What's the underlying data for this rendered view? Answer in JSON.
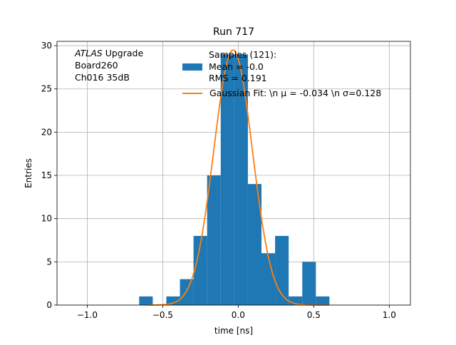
{
  "chart_data": {
    "type": "bar",
    "title": "Run 717",
    "xlabel": "time [ns]",
    "ylabel": "Entries",
    "xlim": [
      -1.2,
      1.14
    ],
    "ylim": [
      0,
      30.5
    ],
    "x_ticks": [
      -1.0,
      -0.5,
      0.0,
      0.5,
      1.0
    ],
    "x_tick_labels": [
      "−1.0",
      "−0.5",
      "0.0",
      "0.5",
      "1.0"
    ],
    "y_ticks": [
      0,
      5,
      10,
      15,
      20,
      25,
      30
    ],
    "y_tick_labels": [
      "0",
      "5",
      "10",
      "15",
      "20",
      "25",
      "30"
    ],
    "grid": true,
    "legend_position": "top-right",
    "annotation": {
      "italic": "ATLAS",
      "line1_rest": " Upgrade",
      "line2": " Board260",
      "line3": " Ch016 35dB"
    },
    "histogram": {
      "name_line1": "Samples (121):",
      "name_line2": " Mean = -0.0",
      "name_line3": " RMS = 0.191",
      "color": "#1f77b4",
      "bins": [
        {
          "x0": -0.656,
          "x1": -0.566,
          "count": 1
        },
        {
          "x0": -0.566,
          "x1": -0.476,
          "count": 0
        },
        {
          "x0": -0.476,
          "x1": -0.386,
          "count": 1
        },
        {
          "x0": -0.386,
          "x1": -0.296,
          "count": 3
        },
        {
          "x0": -0.296,
          "x1": -0.206,
          "count": 8
        },
        {
          "x0": -0.206,
          "x1": -0.116,
          "count": 15
        },
        {
          "x0": -0.116,
          "x1": -0.026,
          "count": 29
        },
        {
          "x0": -0.026,
          "x1": 0.064,
          "count": 29
        },
        {
          "x0": 0.064,
          "x1": 0.154,
          "count": 14
        },
        {
          "x0": 0.154,
          "x1": 0.244,
          "count": 6
        },
        {
          "x0": 0.244,
          "x1": 0.334,
          "count": 8
        },
        {
          "x0": 0.334,
          "x1": 0.424,
          "count": 1
        },
        {
          "x0": 0.424,
          "x1": 0.514,
          "count": 5
        },
        {
          "x0": 0.514,
          "x1": 0.604,
          "count": 1
        }
      ]
    },
    "fit": {
      "name": "Gaussian Fit: \\n μ = -0.034 \\n σ=0.128",
      "color": "#ff7f0e",
      "mu": -0.034,
      "sigma": 0.128,
      "amplitude": 29.5,
      "x_range": [
        -0.6,
        0.6
      ]
    }
  }
}
